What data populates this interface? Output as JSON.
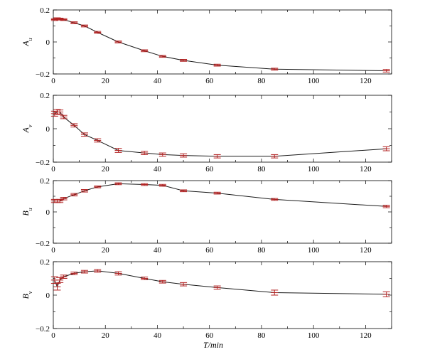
{
  "xlabel": "T/min",
  "chart_data": [
    {
      "type": "line",
      "ylabel_main": "A",
      "ylabel_sub": "u",
      "xlim": [
        0,
        130
      ],
      "ylim": [
        -0.2,
        0.2
      ],
      "xticks": [
        0,
        20,
        40,
        60,
        80,
        100,
        120
      ],
      "yticks": [
        0.2,
        0,
        -0.2
      ],
      "ytick_labels": [
        "0.2",
        "0",
        "−0.2"
      ],
      "x": [
        0.5,
        1.5,
        2.5,
        4,
        8,
        12,
        17,
        25,
        35,
        42,
        50,
        63,
        85,
        128
      ],
      "y": [
        0.14,
        0.145,
        0.143,
        0.14,
        0.12,
        0.1,
        0.06,
        0.0,
        -0.055,
        -0.09,
        -0.115,
        -0.145,
        -0.17,
        -0.18
      ],
      "err": [
        0.006,
        0.006,
        0.006,
        0.006,
        0.006,
        0.006,
        0.006,
        0.006,
        0.006,
        0.006,
        0.006,
        0.006,
        0.006,
        0.008
      ]
    },
    {
      "type": "line",
      "ylabel_main": "A",
      "ylabel_sub": "v",
      "xlim": [
        0,
        130
      ],
      "ylim": [
        -0.2,
        0.2
      ],
      "xticks": [
        0,
        20,
        40,
        60,
        80,
        100,
        120
      ],
      "yticks": [
        0.2,
        0,
        -0.2
      ],
      "ytick_labels": [
        "0.2",
        "0",
        "−0.2"
      ],
      "x": [
        0.5,
        1.5,
        2.5,
        4,
        8,
        12,
        17,
        25,
        35,
        42,
        50,
        63,
        85,
        128
      ],
      "y": [
        0.09,
        0.1,
        0.1,
        0.07,
        0.02,
        -0.035,
        -0.07,
        -0.13,
        -0.145,
        -0.155,
        -0.16,
        -0.165,
        -0.165,
        -0.12
      ],
      "err": [
        0.015,
        0.015,
        0.012,
        0.01,
        0.01,
        0.01,
        0.01,
        0.012,
        0.01,
        0.01,
        0.01,
        0.01,
        0.01,
        0.012
      ]
    },
    {
      "type": "line",
      "ylabel_main": "B",
      "ylabel_sub": "u",
      "xlim": [
        0,
        130
      ],
      "ylim": [
        -0.2,
        0.2
      ],
      "xticks": [
        0,
        20,
        40,
        60,
        80,
        100,
        120
      ],
      "yticks": [
        0.2,
        0,
        -0.2
      ],
      "ytick_labels": [
        "0.2",
        "0",
        "−0.2"
      ],
      "x": [
        0.5,
        1.5,
        2.5,
        4,
        8,
        12,
        17,
        25,
        35,
        42,
        50,
        63,
        85,
        128
      ],
      "y": [
        0.07,
        0.07,
        0.07,
        0.085,
        0.11,
        0.135,
        0.16,
        0.18,
        0.175,
        0.17,
        0.135,
        0.12,
        0.08,
        0.035
      ],
      "err": [
        0.01,
        0.01,
        0.01,
        0.008,
        0.008,
        0.008,
        0.006,
        0.006,
        0.006,
        0.006,
        0.006,
        0.006,
        0.006,
        0.008
      ]
    },
    {
      "type": "line",
      "ylabel_main": "B",
      "ylabel_sub": "v",
      "xlim": [
        0,
        130
      ],
      "ylim": [
        -0.2,
        0.2
      ],
      "xticks": [
        0,
        20,
        40,
        60,
        80,
        100,
        120
      ],
      "yticks": [
        0.2,
        0,
        -0.2
      ],
      "ytick_labels": [
        "0.2",
        "0",
        "−0.2"
      ],
      "x": [
        0.5,
        1.5,
        2.5,
        4,
        8,
        12,
        17,
        25,
        35,
        42,
        50,
        63,
        85,
        128
      ],
      "y": [
        0.09,
        0.05,
        0.09,
        0.11,
        0.13,
        0.14,
        0.145,
        0.13,
        0.1,
        0.08,
        0.065,
        0.045,
        0.015,
        0.005
      ],
      "err": [
        0.02,
        0.02,
        0.015,
        0.01,
        0.008,
        0.008,
        0.008,
        0.01,
        0.008,
        0.008,
        0.01,
        0.01,
        0.015,
        0.015
      ]
    }
  ]
}
